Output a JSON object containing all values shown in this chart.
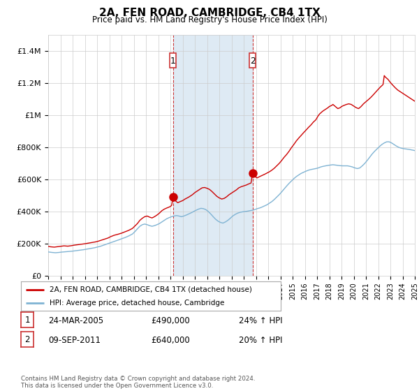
{
  "title": "2A, FEN ROAD, CAMBRIDGE, CB4 1TX",
  "subtitle": "Price paid vs. HM Land Registry's House Price Index (HPI)",
  "ylim": [
    0,
    1500000
  ],
  "yticks": [
    0,
    200000,
    400000,
    600000,
    800000,
    1000000,
    1200000,
    1400000
  ],
  "ytick_labels": [
    "£0",
    "£200K",
    "£400K",
    "£600K",
    "£800K",
    "£1M",
    "£1.2M",
    "£1.4M"
  ],
  "house_color": "#cc0000",
  "hpi_color": "#7fb3d3",
  "marker1_x": 2005.22,
  "marker1_y": 490000,
  "marker2_x": 2011.72,
  "marker2_y": 640000,
  "vline1_x": 2005.22,
  "vline2_x": 2011.72,
  "shade_color": "#deeaf4",
  "legend_house": "2A, FEN ROAD, CAMBRIDGE, CB4 1TX (detached house)",
  "legend_hpi": "HPI: Average price, detached house, Cambridge",
  "table_rows": [
    [
      "1",
      "24-MAR-2005",
      "£490,000",
      "24% ↑ HPI"
    ],
    [
      "2",
      "09-SEP-2011",
      "£640,000",
      "20% ↑ HPI"
    ]
  ],
  "footnote": "Contains HM Land Registry data © Crown copyright and database right 2024.\nThis data is licensed under the Open Government Licence v3.0.",
  "background_color": "#ffffff",
  "grid_color": "#cccccc",
  "house_prices": [
    [
      1995.0,
      183000
    ],
    [
      1995.2,
      180000
    ],
    [
      1995.5,
      178000
    ],
    [
      1995.8,
      181000
    ],
    [
      1996.0,
      183000
    ],
    [
      1996.3,
      186000
    ],
    [
      1996.6,
      184000
    ],
    [
      1996.9,
      187000
    ],
    [
      1997.1,
      190000
    ],
    [
      1997.4,
      193000
    ],
    [
      1997.7,
      196000
    ],
    [
      1998.0,
      199000
    ],
    [
      1998.3,
      203000
    ],
    [
      1998.6,
      207000
    ],
    [
      1998.9,
      211000
    ],
    [
      1999.1,
      215000
    ],
    [
      1999.3,
      220000
    ],
    [
      1999.6,
      228000
    ],
    [
      1999.9,
      235000
    ],
    [
      2000.1,
      243000
    ],
    [
      2000.4,
      252000
    ],
    [
      2000.7,
      258000
    ],
    [
      2001.0,
      265000
    ],
    [
      2001.3,
      274000
    ],
    [
      2001.6,
      283000
    ],
    [
      2001.9,
      295000
    ],
    [
      2002.1,
      310000
    ],
    [
      2002.3,
      325000
    ],
    [
      2002.5,
      345000
    ],
    [
      2002.7,
      358000
    ],
    [
      2002.9,
      368000
    ],
    [
      2003.1,
      372000
    ],
    [
      2003.3,
      365000
    ],
    [
      2003.5,
      360000
    ],
    [
      2003.7,
      368000
    ],
    [
      2003.9,
      378000
    ],
    [
      2004.1,
      390000
    ],
    [
      2004.3,
      405000
    ],
    [
      2004.5,
      415000
    ],
    [
      2004.7,
      422000
    ],
    [
      2004.9,
      428000
    ],
    [
      2005.0,
      432000
    ],
    [
      2005.1,
      438000
    ],
    [
      2005.22,
      490000
    ],
    [
      2005.4,
      468000
    ],
    [
      2005.6,
      455000
    ],
    [
      2005.8,
      462000
    ],
    [
      2006.0,
      468000
    ],
    [
      2006.2,
      478000
    ],
    [
      2006.5,
      490000
    ],
    [
      2006.8,
      505000
    ],
    [
      2007.0,
      518000
    ],
    [
      2007.2,
      528000
    ],
    [
      2007.4,
      538000
    ],
    [
      2007.6,
      548000
    ],
    [
      2007.8,
      550000
    ],
    [
      2008.0,
      545000
    ],
    [
      2008.2,
      538000
    ],
    [
      2008.4,
      525000
    ],
    [
      2008.6,
      510000
    ],
    [
      2008.8,
      495000
    ],
    [
      2009.0,
      485000
    ],
    [
      2009.2,
      478000
    ],
    [
      2009.4,
      482000
    ],
    [
      2009.6,
      492000
    ],
    [
      2009.8,
      505000
    ],
    [
      2010.0,
      515000
    ],
    [
      2010.2,
      525000
    ],
    [
      2010.4,
      535000
    ],
    [
      2010.6,
      548000
    ],
    [
      2010.8,
      555000
    ],
    [
      2011.0,
      560000
    ],
    [
      2011.2,
      565000
    ],
    [
      2011.4,
      572000
    ],
    [
      2011.6,
      578000
    ],
    [
      2011.72,
      640000
    ],
    [
      2011.9,
      618000
    ],
    [
      2012.1,
      610000
    ],
    [
      2012.3,
      618000
    ],
    [
      2012.5,
      625000
    ],
    [
      2012.7,
      632000
    ],
    [
      2012.9,
      640000
    ],
    [
      2013.1,
      648000
    ],
    [
      2013.3,
      658000
    ],
    [
      2013.5,
      670000
    ],
    [
      2013.7,
      685000
    ],
    [
      2013.9,
      700000
    ],
    [
      2014.1,
      718000
    ],
    [
      2014.3,
      738000
    ],
    [
      2014.5,
      755000
    ],
    [
      2014.7,
      775000
    ],
    [
      2014.9,
      798000
    ],
    [
      2015.1,
      818000
    ],
    [
      2015.3,
      840000
    ],
    [
      2015.5,
      858000
    ],
    [
      2015.7,
      875000
    ],
    [
      2015.9,
      892000
    ],
    [
      2016.1,
      908000
    ],
    [
      2016.3,
      925000
    ],
    [
      2016.5,
      940000
    ],
    [
      2016.7,
      958000
    ],
    [
      2016.9,
      972000
    ],
    [
      2017.0,
      985000
    ],
    [
      2017.1,
      998000
    ],
    [
      2017.2,
      1008000
    ],
    [
      2017.3,
      1015000
    ],
    [
      2017.4,
      1022000
    ],
    [
      2017.5,
      1028000
    ],
    [
      2017.7,
      1038000
    ],
    [
      2017.9,
      1048000
    ],
    [
      2018.0,
      1055000
    ],
    [
      2018.2,
      1062000
    ],
    [
      2018.3,
      1068000
    ],
    [
      2018.5,
      1055000
    ],
    [
      2018.7,
      1042000
    ],
    [
      2018.9,
      1048000
    ],
    [
      2019.0,
      1055000
    ],
    [
      2019.2,
      1062000
    ],
    [
      2019.4,
      1068000
    ],
    [
      2019.6,
      1072000
    ],
    [
      2019.8,
      1068000
    ],
    [
      2020.0,
      1058000
    ],
    [
      2020.2,
      1048000
    ],
    [
      2020.4,
      1042000
    ],
    [
      2020.6,
      1055000
    ],
    [
      2020.8,
      1072000
    ],
    [
      2021.0,
      1085000
    ],
    [
      2021.2,
      1098000
    ],
    [
      2021.4,
      1112000
    ],
    [
      2021.6,
      1128000
    ],
    [
      2021.8,
      1145000
    ],
    [
      2022.0,
      1162000
    ],
    [
      2022.2,
      1178000
    ],
    [
      2022.4,
      1192000
    ],
    [
      2022.5,
      1248000
    ],
    [
      2022.6,
      1238000
    ],
    [
      2022.8,
      1225000
    ],
    [
      2023.0,
      1205000
    ],
    [
      2023.2,
      1188000
    ],
    [
      2023.4,
      1172000
    ],
    [
      2023.6,
      1158000
    ],
    [
      2023.8,
      1148000
    ],
    [
      2024.0,
      1138000
    ],
    [
      2024.2,
      1128000
    ],
    [
      2024.4,
      1118000
    ],
    [
      2024.6,
      1108000
    ],
    [
      2024.8,
      1098000
    ],
    [
      2025.0,
      1088000
    ]
  ],
  "hpi_prices": [
    [
      1995.0,
      148000
    ],
    [
      1995.3,
      145000
    ],
    [
      1995.6,
      143000
    ],
    [
      1995.9,
      145000
    ],
    [
      1996.1,
      147000
    ],
    [
      1996.4,
      149000
    ],
    [
      1996.7,
      151000
    ],
    [
      1997.0,
      153000
    ],
    [
      1997.3,
      156000
    ],
    [
      1997.6,
      159000
    ],
    [
      1997.9,
      162000
    ],
    [
      1998.2,
      166000
    ],
    [
      1998.5,
      170000
    ],
    [
      1998.8,
      174000
    ],
    [
      1999.0,
      178000
    ],
    [
      1999.3,
      184000
    ],
    [
      1999.6,
      192000
    ],
    [
      1999.9,
      200000
    ],
    [
      2000.2,
      208000
    ],
    [
      2000.5,
      216000
    ],
    [
      2000.8,
      224000
    ],
    [
      2001.0,
      230000
    ],
    [
      2001.3,
      238000
    ],
    [
      2001.6,
      248000
    ],
    [
      2001.9,
      260000
    ],
    [
      2002.1,
      275000
    ],
    [
      2002.3,
      292000
    ],
    [
      2002.5,
      308000
    ],
    [
      2002.7,
      318000
    ],
    [
      2002.9,
      322000
    ],
    [
      2003.1,
      318000
    ],
    [
      2003.3,
      312000
    ],
    [
      2003.5,
      308000
    ],
    [
      2003.7,
      312000
    ],
    [
      2003.9,
      318000
    ],
    [
      2004.1,
      325000
    ],
    [
      2004.3,
      335000
    ],
    [
      2004.5,
      345000
    ],
    [
      2004.7,
      355000
    ],
    [
      2004.9,
      362000
    ],
    [
      2005.1,
      368000
    ],
    [
      2005.3,
      372000
    ],
    [
      2005.5,
      375000
    ],
    [
      2005.7,
      372000
    ],
    [
      2005.9,
      368000
    ],
    [
      2006.1,
      372000
    ],
    [
      2006.3,
      378000
    ],
    [
      2006.5,
      385000
    ],
    [
      2006.7,
      392000
    ],
    [
      2006.9,
      400000
    ],
    [
      2007.1,
      408000
    ],
    [
      2007.3,
      415000
    ],
    [
      2007.5,
      420000
    ],
    [
      2007.7,
      418000
    ],
    [
      2007.9,
      412000
    ],
    [
      2008.1,
      400000
    ],
    [
      2008.3,
      385000
    ],
    [
      2008.5,
      368000
    ],
    [
      2008.7,
      352000
    ],
    [
      2008.9,
      340000
    ],
    [
      2009.1,
      332000
    ],
    [
      2009.3,
      328000
    ],
    [
      2009.5,
      335000
    ],
    [
      2009.7,
      345000
    ],
    [
      2009.9,
      358000
    ],
    [
      2010.1,
      372000
    ],
    [
      2010.3,
      382000
    ],
    [
      2010.5,
      390000
    ],
    [
      2010.7,
      395000
    ],
    [
      2010.9,
      398000
    ],
    [
      2011.1,
      400000
    ],
    [
      2011.3,
      402000
    ],
    [
      2011.5,
      405000
    ],
    [
      2011.7,
      408000
    ],
    [
      2011.9,
      412000
    ],
    [
      2012.1,
      418000
    ],
    [
      2012.3,
      422000
    ],
    [
      2012.5,
      428000
    ],
    [
      2012.7,
      435000
    ],
    [
      2012.9,
      442000
    ],
    [
      2013.1,
      452000
    ],
    [
      2013.3,
      462000
    ],
    [
      2013.5,
      475000
    ],
    [
      2013.7,
      490000
    ],
    [
      2013.9,
      505000
    ],
    [
      2014.1,
      522000
    ],
    [
      2014.3,
      540000
    ],
    [
      2014.5,
      558000
    ],
    [
      2014.7,
      575000
    ],
    [
      2014.9,
      590000
    ],
    [
      2015.1,
      605000
    ],
    [
      2015.3,
      618000
    ],
    [
      2015.5,
      628000
    ],
    [
      2015.7,
      638000
    ],
    [
      2015.9,
      645000
    ],
    [
      2016.1,
      652000
    ],
    [
      2016.3,
      658000
    ],
    [
      2016.5,
      662000
    ],
    [
      2016.7,
      665000
    ],
    [
      2016.9,
      668000
    ],
    [
      2017.1,
      672000
    ],
    [
      2017.3,
      678000
    ],
    [
      2017.5,
      682000
    ],
    [
      2017.7,
      685000
    ],
    [
      2017.9,
      688000
    ],
    [
      2018.1,
      690000
    ],
    [
      2018.3,
      692000
    ],
    [
      2018.5,
      690000
    ],
    [
      2018.7,
      688000
    ],
    [
      2018.9,
      686000
    ],
    [
      2019.1,
      685000
    ],
    [
      2019.3,
      685000
    ],
    [
      2019.5,
      685000
    ],
    [
      2019.7,
      682000
    ],
    [
      2019.9,
      678000
    ],
    [
      2020.1,
      672000
    ],
    [
      2020.3,
      668000
    ],
    [
      2020.5,
      672000
    ],
    [
      2020.7,
      685000
    ],
    [
      2020.9,
      700000
    ],
    [
      2021.1,
      718000
    ],
    [
      2021.3,
      738000
    ],
    [
      2021.5,
      758000
    ],
    [
      2021.7,
      775000
    ],
    [
      2021.9,
      790000
    ],
    [
      2022.1,
      805000
    ],
    [
      2022.3,
      818000
    ],
    [
      2022.5,
      828000
    ],
    [
      2022.7,
      835000
    ],
    [
      2022.9,
      835000
    ],
    [
      2023.1,
      828000
    ],
    [
      2023.3,
      818000
    ],
    [
      2023.5,
      808000
    ],
    [
      2023.7,
      800000
    ],
    [
      2023.9,
      795000
    ],
    [
      2024.1,
      792000
    ],
    [
      2024.3,
      790000
    ],
    [
      2024.5,
      788000
    ],
    [
      2024.7,
      785000
    ],
    [
      2024.9,
      782000
    ],
    [
      2025.0,
      780000
    ]
  ],
  "xmin": 1995,
  "xmax": 2025,
  "xticks": [
    1995,
    1996,
    1997,
    1998,
    1999,
    2000,
    2001,
    2002,
    2003,
    2004,
    2005,
    2006,
    2007,
    2008,
    2009,
    2010,
    2011,
    2012,
    2013,
    2014,
    2015,
    2016,
    2017,
    2018,
    2019,
    2020,
    2021,
    2022,
    2023,
    2024,
    2025
  ]
}
